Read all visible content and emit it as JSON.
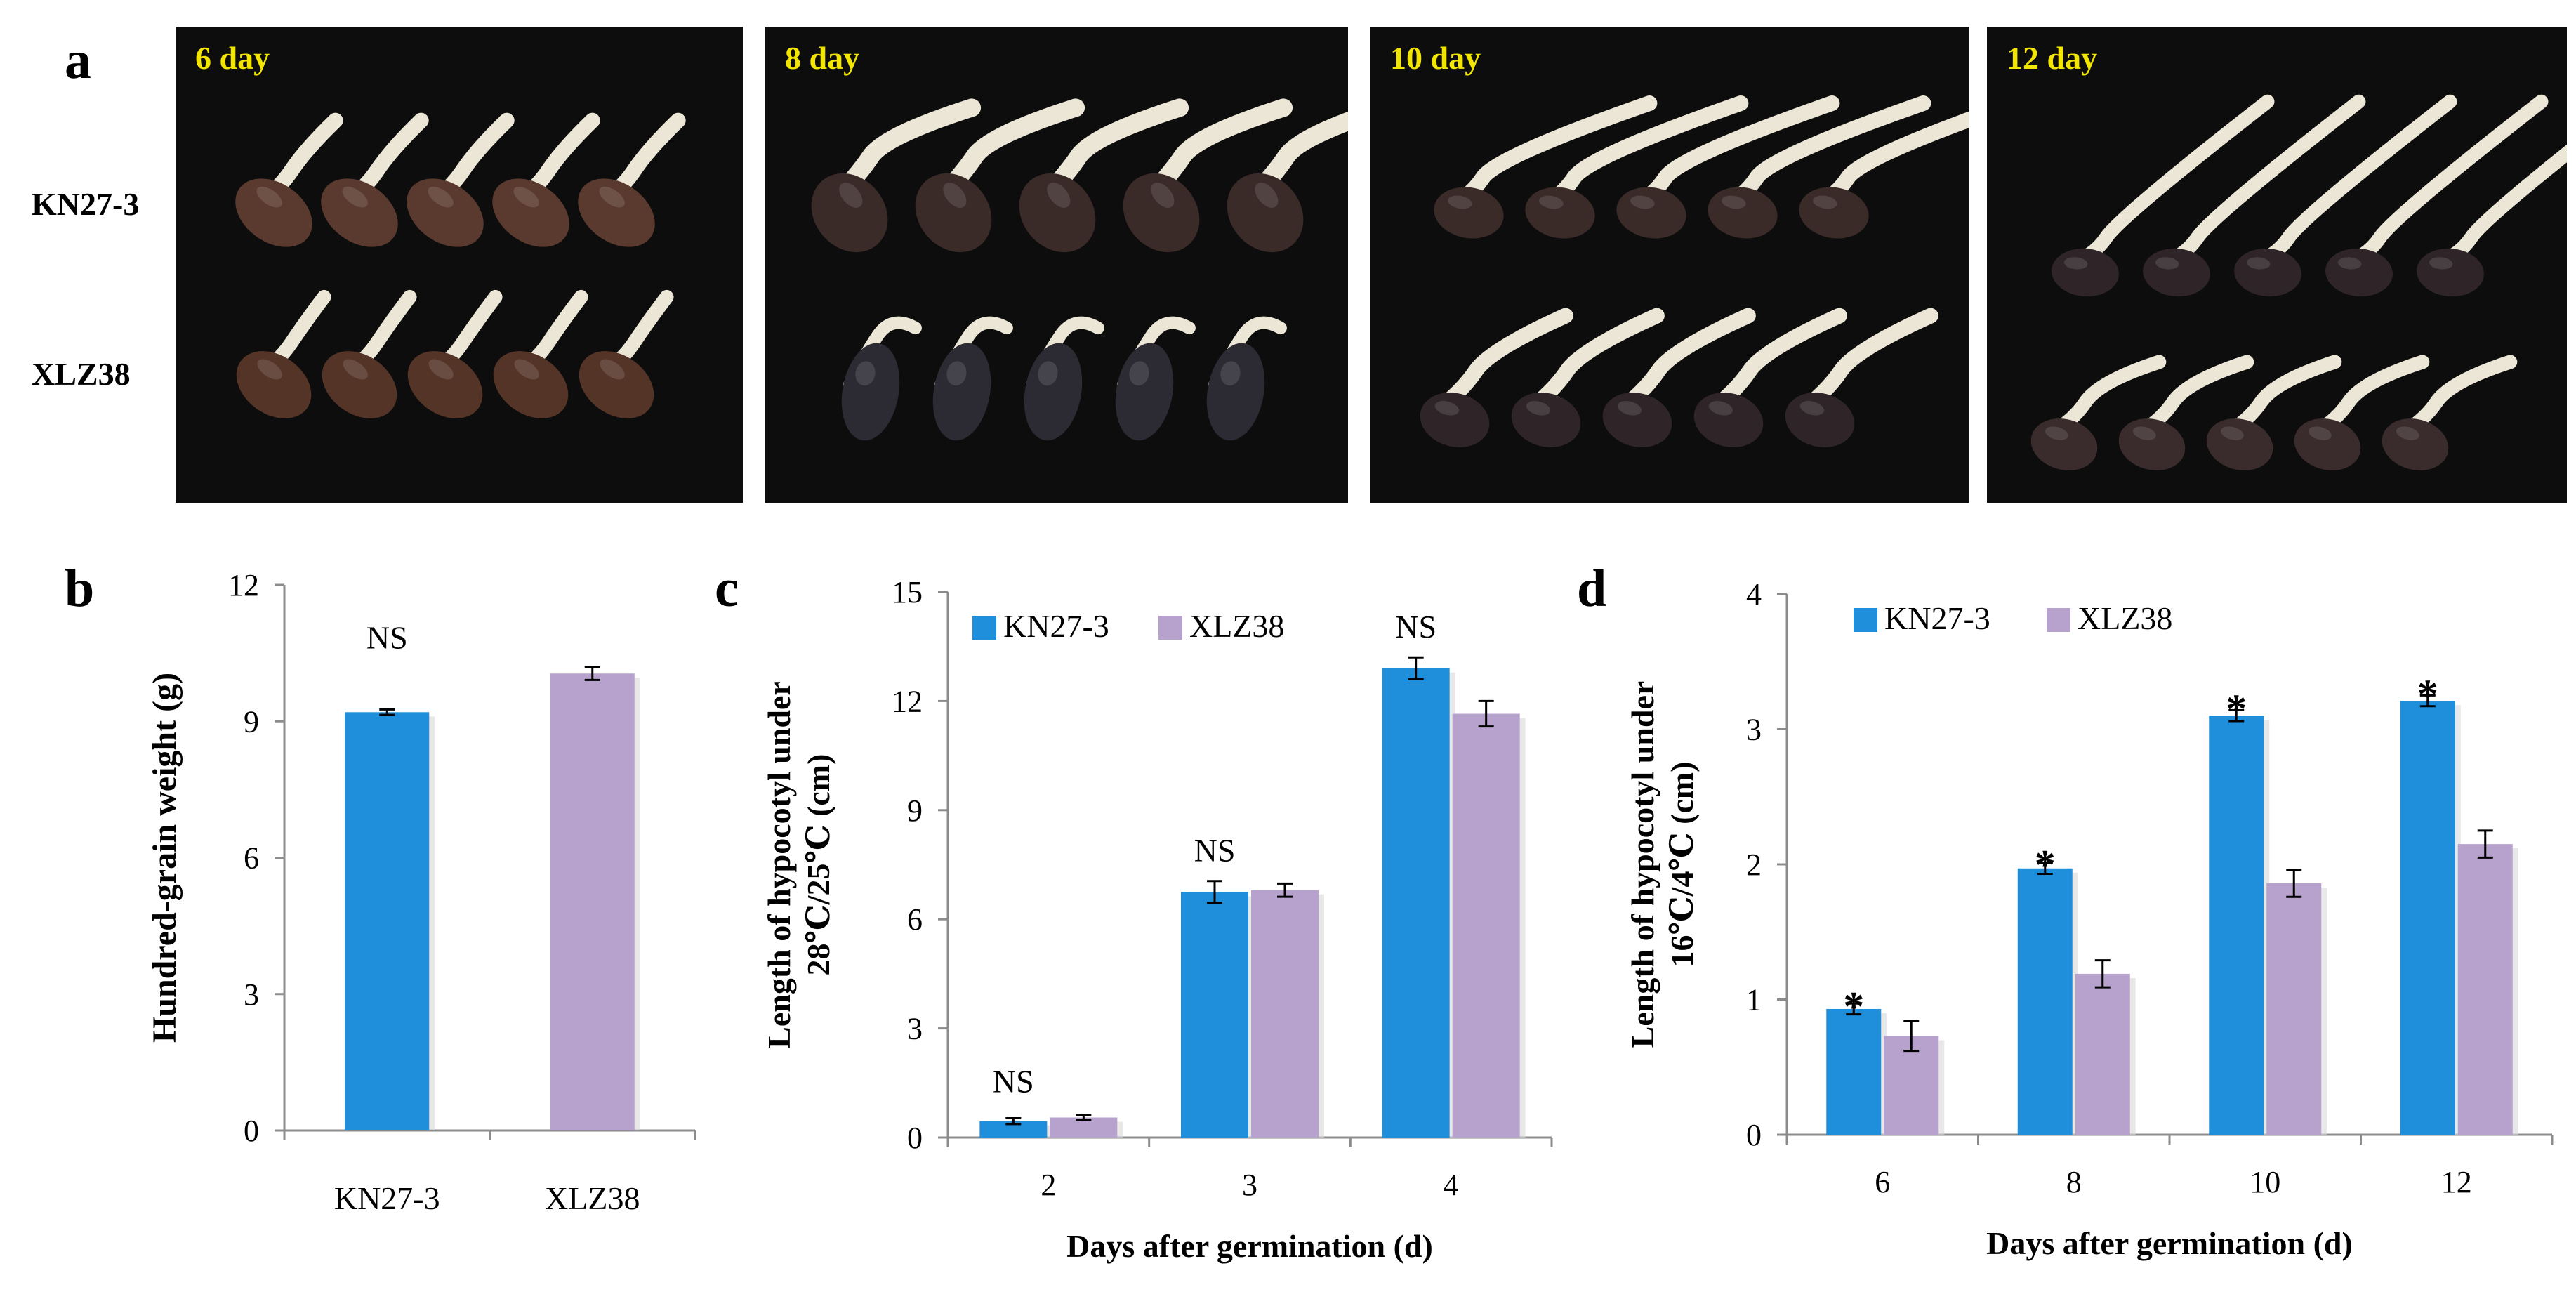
{
  "panels": {
    "a_label": "a",
    "b_label": "b",
    "c_label": "c",
    "d_label": "d"
  },
  "photo_panel": {
    "row_labels": [
      "KN27-3",
      "XLZ38"
    ],
    "day_labels": [
      "6 day",
      "8 day",
      "10 day",
      "12 day"
    ],
    "day_label_color": "#f2e600",
    "background_color": "#0d0d0d"
  },
  "colors": {
    "kn27": "#1f8fdc",
    "xlz38": "#b7a2cd"
  },
  "chart_data": [
    {
      "id": "b",
      "type": "bar",
      "title": "",
      "xlabel": "",
      "ylabel": "Hundred-grain weight (g)",
      "ylim": [
        0,
        12
      ],
      "yticks": [
        0,
        3,
        6,
        9,
        12
      ],
      "categories": [
        "KN27-3",
        "XLZ38"
      ],
      "values": [
        9.2,
        10.05
      ],
      "errors": [
        0.06,
        0.14
      ],
      "colors": [
        "#1f8fdc",
        "#b7a2cd"
      ],
      "annotations": [
        {
          "category": "KN27-3",
          "text": "NS",
          "y": 10.6
        }
      ]
    },
    {
      "id": "c",
      "type": "bar",
      "title": "",
      "xlabel": "Days after germination (d)",
      "ylabel_lines": [
        "Length of hypocotyl under",
        "28℃/25℃ (cm)"
      ],
      "ylim": [
        0,
        15
      ],
      "yticks": [
        0,
        3,
        6,
        9,
        12,
        15
      ],
      "categories": [
        "2",
        "3",
        "4"
      ],
      "series": [
        {
          "name": "KN27-3",
          "values": [
            0.45,
            6.75,
            12.9
          ],
          "errors": [
            0.08,
            0.3,
            0.3
          ]
        },
        {
          "name": "XLZ38",
          "values": [
            0.55,
            6.8,
            11.65
          ],
          "errors": [
            0.06,
            0.18,
            0.35
          ]
        }
      ],
      "annotations": [
        {
          "category": "2",
          "text": "NS",
          "y": 1.25
        },
        {
          "category": "3",
          "text": "NS",
          "y": 7.6
        },
        {
          "category": "4",
          "text": "NS",
          "y": 13.75
        }
      ],
      "legend": "top-left"
    },
    {
      "id": "d",
      "type": "bar",
      "title": "",
      "xlabel": "Days after germination (d)",
      "ylabel_lines": [
        "Length of hypocotyl under",
        "16℃/4℃ (cm)"
      ],
      "ylim": [
        0,
        4
      ],
      "yticks": [
        0,
        1,
        2,
        3,
        4
      ],
      "categories": [
        "6",
        "8",
        "10",
        "12"
      ],
      "series": [
        {
          "name": "KN27-3",
          "values": [
            0.93,
            1.97,
            3.1,
            3.21
          ],
          "errors": [
            0.04,
            0.04,
            0.04,
            0.04
          ]
        },
        {
          "name": "XLZ38",
          "values": [
            0.73,
            1.19,
            1.86,
            2.15
          ],
          "errors": [
            0.11,
            0.1,
            0.1,
            0.1
          ]
        }
      ],
      "annotations": [
        {
          "category": "6",
          "text": "*",
          "y": 1.0
        },
        {
          "category": "8",
          "text": "*",
          "y": 2.05
        },
        {
          "category": "10",
          "text": "*",
          "y": 3.2
        },
        {
          "category": "12",
          "text": "*",
          "y": 3.31
        }
      ],
      "legend": "top-left"
    }
  ]
}
